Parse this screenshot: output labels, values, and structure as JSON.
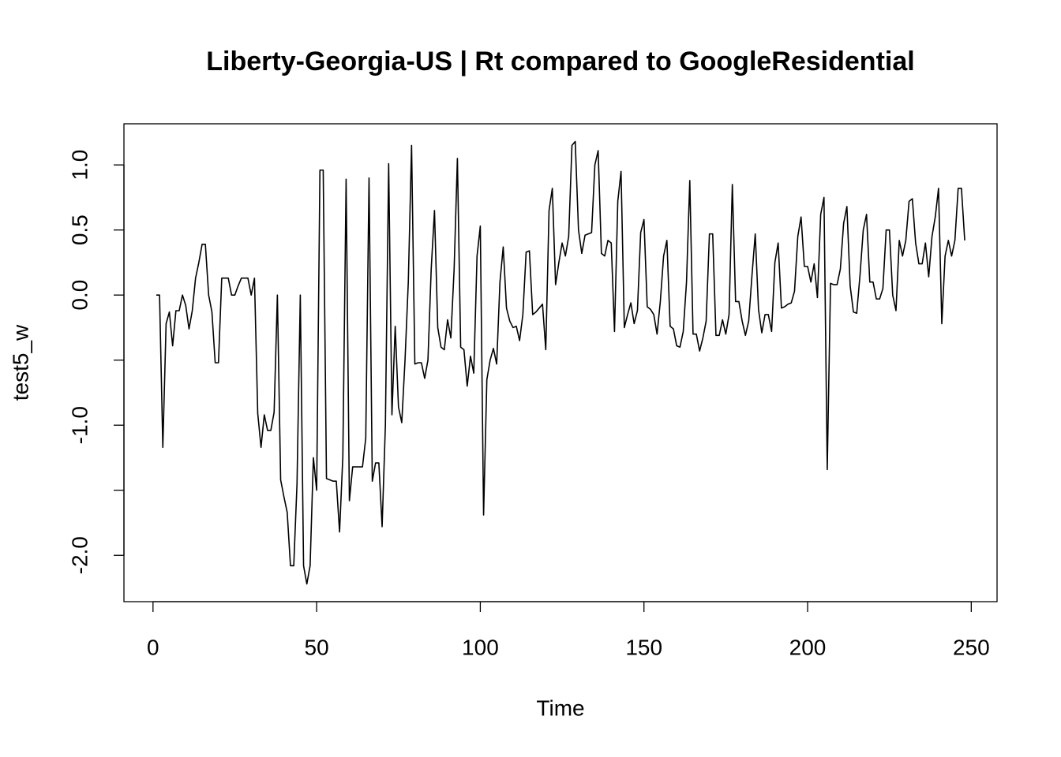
{
  "chart_data": {
    "type": "line",
    "title": "Liberty-Georgia-US | Rt compared to GoogleResidential",
    "x_label": "Time",
    "y_label": "test5_w",
    "color": "#000000",
    "x": [
      1,
      2,
      3,
      4,
      5,
      6,
      7,
      8,
      9,
      10,
      11,
      12,
      13,
      14,
      15,
      16,
      17,
      18,
      19,
      20,
      21,
      22,
      23,
      24,
      25,
      26,
      27,
      28,
      29,
      30,
      31,
      32,
      33,
      34,
      35,
      36,
      37,
      38,
      39,
      40,
      41,
      42,
      43,
      44,
      45,
      46,
      47,
      48,
      49,
      50,
      51,
      52,
      53,
      54,
      55,
      56,
      57,
      58,
      59,
      60,
      61,
      62,
      63,
      64,
      65,
      66,
      67,
      68,
      69,
      70,
      71,
      72,
      73,
      74,
      75,
      76,
      77,
      78,
      79,
      80,
      81,
      82,
      83,
      84,
      85,
      86,
      87,
      88,
      89,
      90,
      91,
      92,
      93,
      94,
      95,
      96,
      97,
      98,
      99,
      100,
      101,
      102,
      103,
      104,
      105,
      106,
      107,
      108,
      109,
      110,
      111,
      112,
      113,
      114,
      115,
      116,
      117,
      118,
      119,
      120,
      121,
      122,
      123,
      124,
      125,
      126,
      127,
      128,
      129,
      130,
      131,
      132,
      133,
      134,
      135,
      136,
      137,
      138,
      139,
      140,
      141,
      142,
      143,
      144,
      145,
      146,
      147,
      148,
      149,
      150,
      151,
      152,
      153,
      154,
      155,
      156,
      157,
      158,
      159,
      160,
      161,
      162,
      163,
      164,
      165,
      166,
      167,
      168,
      169,
      170,
      171,
      172,
      173,
      174,
      175,
      176,
      177,
      178,
      179,
      180,
      181,
      182,
      183,
      184,
      185,
      186,
      187,
      188,
      189,
      190,
      191,
      192,
      193,
      194,
      195,
      196,
      197,
      198,
      199,
      200,
      201,
      202,
      203,
      204,
      205,
      206,
      207,
      208,
      209,
      210,
      211,
      212,
      213,
      214,
      215,
      216,
      217,
      218,
      219,
      220,
      221,
      222,
      223,
      224,
      225,
      226,
      227,
      228,
      229,
      230,
      231,
      232,
      233,
      234,
      235,
      236,
      237,
      238,
      239,
      240,
      241,
      242,
      243,
      244,
      245,
      246,
      247,
      248
    ],
    "values": [
      0,
      0,
      -1.17,
      -0.22,
      -0.13,
      -0.39,
      -0.12,
      -0.12,
      0,
      -0.08,
      -0.26,
      -0.12,
      0.13,
      0.25,
      0.39,
      0.39,
      0,
      -0.13,
      -0.52,
      -0.52,
      0.13,
      0.13,
      0.13,
      0,
      0,
      0.07,
      0.13,
      0.13,
      0.13,
      0,
      0.13,
      -0.91,
      -1.17,
      -0.92,
      -1.04,
      -1.04,
      -0.9,
      0,
      -1.42,
      -1.55,
      -1.67,
      -2.08,
      -2.08,
      -1.45,
      0,
      -2.08,
      -2.22,
      -2.08,
      -1.25,
      -1.5,
      0.96,
      0.96,
      -1.41,
      -1.42,
      -1.43,
      -1.43,
      -1.82,
      -1.24,
      0.89,
      -1.58,
      -1.32,
      -1.32,
      -1.32,
      -1.32,
      -1.1,
      0.9,
      -1.43,
      -1.29,
      -1.29,
      -1.78,
      -1.0,
      1.01,
      -0.92,
      -0.24,
      -0.86,
      -0.98,
      -0.5,
      0.1,
      1.15,
      -0.53,
      -0.52,
      -0.52,
      -0.64,
      -0.5,
      0.2,
      0.65,
      -0.25,
      -0.4,
      -0.42,
      -0.19,
      -0.33,
      0.2,
      1.05,
      -0.4,
      -0.42,
      -0.7,
      -0.47,
      -0.6,
      0.3,
      0.53,
      -1.69,
      -0.65,
      -0.5,
      -0.41,
      -0.53,
      0.1,
      0.37,
      -0.1,
      -0.2,
      -0.25,
      -0.24,
      -0.35,
      -0.15,
      0.33,
      0.34,
      -0.15,
      -0.13,
      -0.1,
      -0.07,
      -0.42,
      0.65,
      0.82,
      0.08,
      0.25,
      0.4,
      0.3,
      0.45,
      1.15,
      1.18,
      0.5,
      0.32,
      0.46,
      0.47,
      0.48,
      1.0,
      1.11,
      0.32,
      0.3,
      0.42,
      0.4,
      -0.28,
      0.72,
      0.95,
      -0.25,
      -0.15,
      -0.06,
      -0.22,
      -0.12,
      0.48,
      0.58,
      -0.09,
      -0.11,
      -0.15,
      -0.3,
      -0.05,
      0.3,
      0.42,
      -0.24,
      -0.26,
      -0.39,
      -0.4,
      -0.28,
      0.1,
      0.88,
      -0.3,
      -0.3,
      -0.43,
      -0.33,
      -0.2,
      0.47,
      0.47,
      -0.31,
      -0.31,
      -0.19,
      -0.3,
      -0.15,
      0.85,
      -0.05,
      -0.05,
      -0.2,
      -0.31,
      -0.2,
      0.15,
      0.47,
      -0.11,
      -0.29,
      -0.15,
      -0.15,
      -0.28,
      0.25,
      0.4,
      -0.1,
      -0.09,
      -0.07,
      -0.06,
      0.03,
      0.45,
      0.6,
      0.22,
      0.22,
      0.1,
      0.24,
      -0.02,
      0.62,
      0.75,
      -1.34,
      0.09,
      0.08,
      0.08,
      0.2,
      0.55,
      0.68,
      0.07,
      -0.13,
      -0.14,
      0.15,
      0.5,
      0.62,
      0.1,
      0.1,
      -0.03,
      -0.03,
      0.05,
      0.5,
      0.5,
      0,
      -0.12,
      0.42,
      0.3,
      0.42,
      0.72,
      0.74,
      0.4,
      0.24,
      0.24,
      0.4,
      0.14,
      0.45,
      0.6,
      0.82,
      -0.22,
      0.3,
      0.42,
      0.3,
      0.42,
      0.82,
      0.82,
      0.42
    ],
    "xlim": [
      -8.88,
      257.88
    ],
    "xticks": [
      0,
      50,
      100,
      150,
      200,
      250
    ],
    "ylim": [
      -2.356,
      1.316
    ],
    "yticks": [
      {
        "value": -2,
        "label": "-2.0"
      },
      {
        "value": -1.5,
        "label": null
      },
      {
        "value": -1,
        "label": "-1.0"
      },
      {
        "value": -0.5,
        "label": null
      },
      {
        "value": 0,
        "label": "0.0"
      },
      0.5,
      {
        "value": 1,
        "label": "1.0"
      }
    ]
  }
}
